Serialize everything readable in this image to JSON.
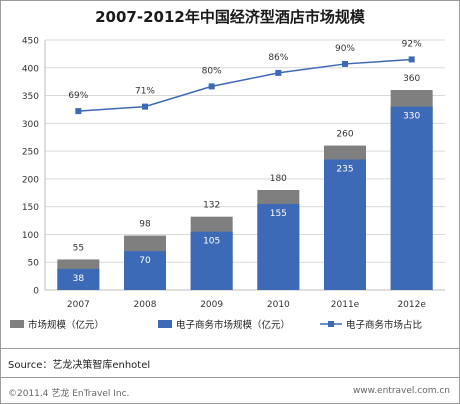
{
  "colors": {
    "bar_total": "#7f7f7f",
    "bar_ecommerce": "#3d6ab6",
    "line": "#3d6ab6",
    "grid": "#d9d9d9",
    "axis_text": "#333333"
  },
  "chart_data": {
    "type": "bar",
    "title": "2007-2012年中国经济型酒店市场规模",
    "categories": [
      "2007",
      "2008",
      "2009",
      "2010",
      "2011e",
      "2012e"
    ],
    "ylim": [
      0,
      450
    ],
    "yticks": [
      "0",
      "50",
      "100",
      "150",
      "200",
      "250",
      "300",
      "350",
      "400",
      "450"
    ],
    "grid": true,
    "legend_position": "bottom",
    "series": [
      {
        "name": "市场规模（亿元）",
        "kind": "bar",
        "values": [
          55,
          98,
          132,
          180,
          260,
          360
        ],
        "labels": [
          "55",
          "98",
          "132",
          "180",
          "260",
          "360"
        ]
      },
      {
        "name": "电子商务市场规模（亿元）",
        "kind": "bar",
        "values": [
          38,
          70,
          105,
          155,
          235,
          330
        ],
        "labels": [
          "38",
          "70",
          "105",
          "155",
          "235",
          "330"
        ]
      },
      {
        "name": "电子商务市场占比",
        "kind": "line",
        "values": [
          69,
          71,
          80,
          86,
          90,
          92
        ],
        "labels": [
          "69%",
          "71%",
          "80%",
          "86%",
          "90%",
          "92%"
        ]
      }
    ]
  },
  "source": "Source：艺龙决策智库enhotel",
  "footer_left": "©2011.4 艺龙 EnTravel Inc.",
  "footer_right": "www.entravel.com.cn"
}
